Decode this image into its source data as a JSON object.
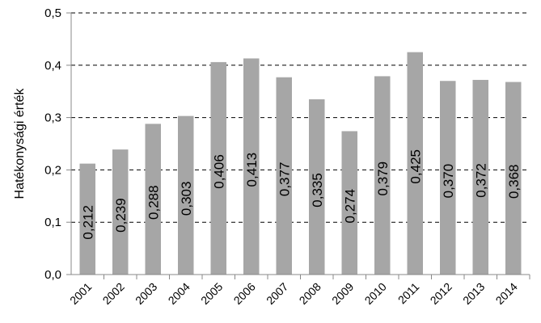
{
  "chart_data": {
    "type": "bar",
    "title": "",
    "xlabel": "",
    "ylabel": "Hatékonysági érték",
    "categories": [
      "2001",
      "2002",
      "2003",
      "2004",
      "2005",
      "2006",
      "2007",
      "2008",
      "2009",
      "2010",
      "2011",
      "2012",
      "2013",
      "2014"
    ],
    "values": [
      0.212,
      0.239,
      0.288,
      0.303,
      0.406,
      0.413,
      0.377,
      0.335,
      0.274,
      0.379,
      0.425,
      0.37,
      0.372,
      0.368
    ],
    "data_labels": [
      "0,212",
      "0,239",
      "0,288",
      "0,303",
      "0,406",
      "0,413",
      "0,377",
      "0,335",
      "0,274",
      "0,379",
      "0,425",
      "0,370",
      "0,372",
      "0,368"
    ],
    "ylim": [
      0,
      0.5
    ],
    "yticks": [
      0,
      0.1,
      0.2,
      0.3,
      0.4,
      0.5
    ],
    "ytick_labels": [
      "0,0",
      "0,1",
      "0,2",
      "0,3",
      "0,4",
      "0,5"
    ],
    "grid": "dashed horizontal",
    "legend": "none",
    "bar_color": "#a6a6a6"
  }
}
